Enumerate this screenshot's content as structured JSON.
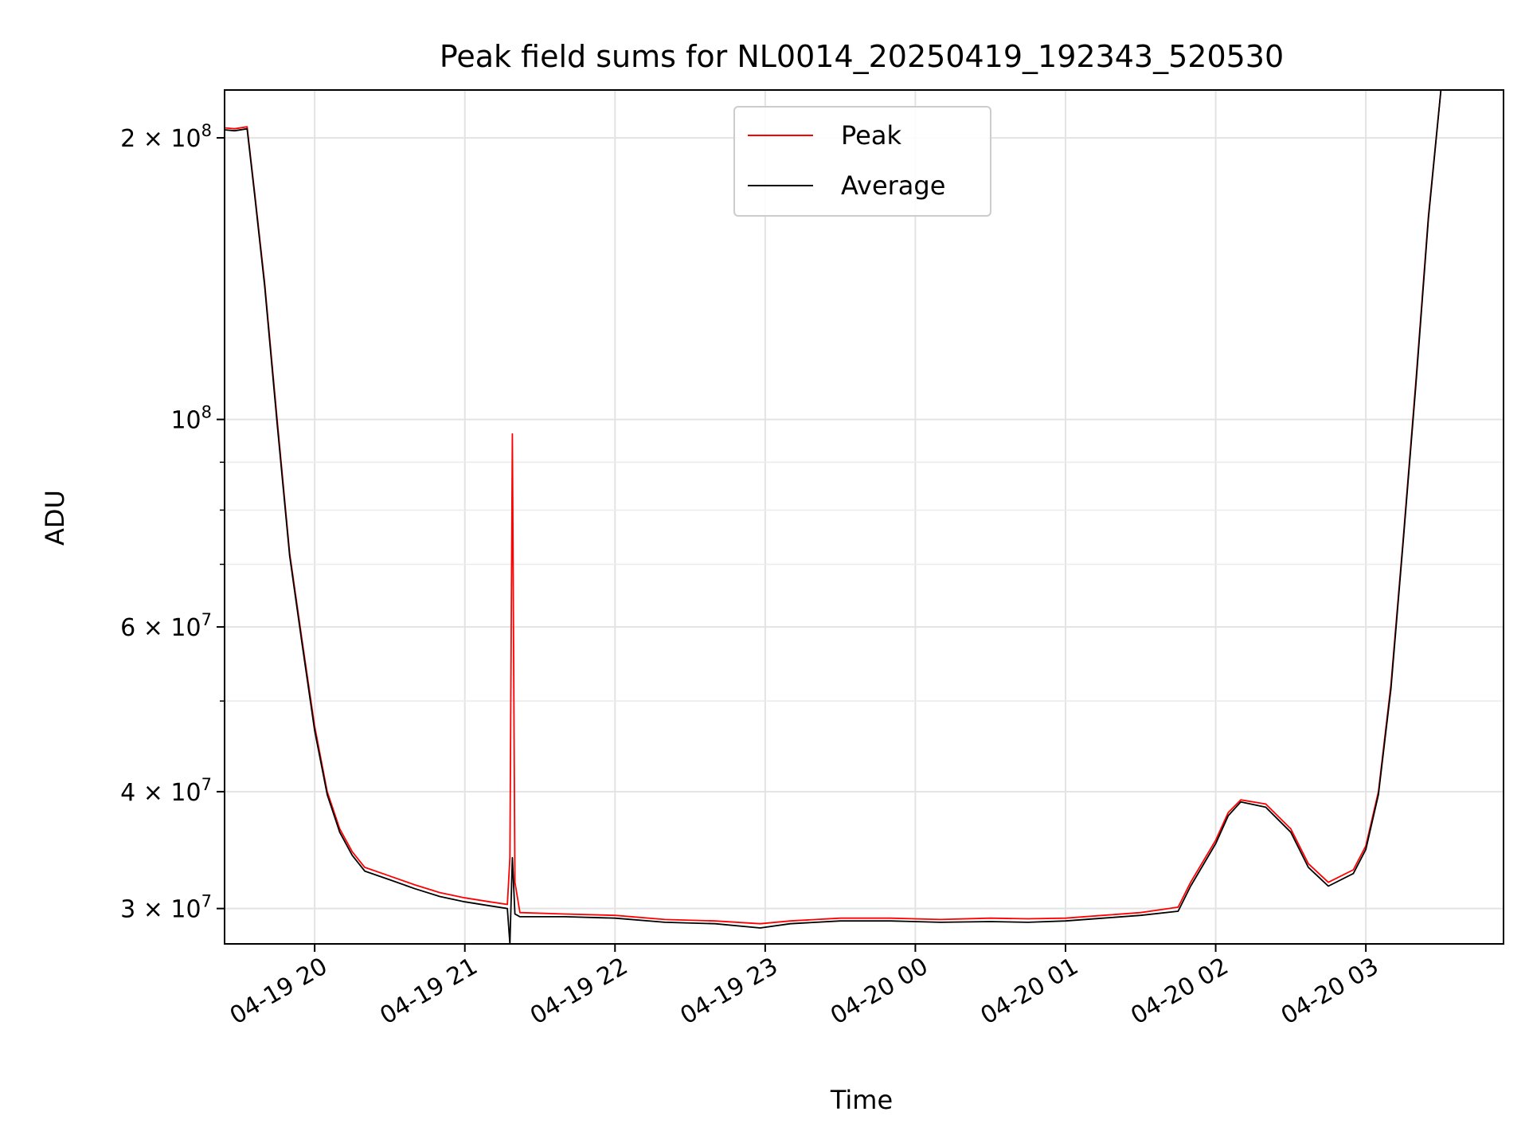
{
  "chart_data": {
    "type": "line",
    "title": "Peak field sums for NL0014_20250419_192343_520530",
    "xlabel": "Time",
    "ylabel": "ADU",
    "yscale": "log",
    "ylim": [
      27500000,
      225000000
    ],
    "xlim": [
      "2025-04-19T19:24",
      "2025-04-20T03:55"
    ],
    "grid": true,
    "legend_position": "top-center",
    "x_ticks": [
      {
        "value": "2025-04-19T20:00",
        "label": "04-19 20"
      },
      {
        "value": "2025-04-19T21:00",
        "label": "04-19 21"
      },
      {
        "value": "2025-04-19T22:00",
        "label": "04-19 22"
      },
      {
        "value": "2025-04-19T23:00",
        "label": "04-19 23"
      },
      {
        "value": "2025-04-20T00:00",
        "label": "04-20 00"
      },
      {
        "value": "2025-04-20T01:00",
        "label": "04-20 01"
      },
      {
        "value": "2025-04-20T02:00",
        "label": "04-20 02"
      },
      {
        "value": "2025-04-20T03:00",
        "label": "04-20 03"
      }
    ],
    "y_ticks": [
      {
        "value": 30000000,
        "label": "3 × 10",
        "exp": "7"
      },
      {
        "value": 40000000,
        "label": "4 × 10",
        "exp": "7"
      },
      {
        "value": 60000000,
        "label": "6 × 10",
        "exp": "7"
      },
      {
        "value": 100000000,
        "label": "10",
        "exp": "8"
      },
      {
        "value": 200000000,
        "label": "2 × 10",
        "exp": "8"
      }
    ],
    "y_minor_gridlines": [
      50000000,
      70000000,
      80000000,
      90000000
    ],
    "series": [
      {
        "name": "Peak",
        "color": "#ff0000",
        "points": [
          [
            "2025-04-19T19:24",
            205000000
          ],
          [
            "2025-04-19T19:28",
            204500000
          ],
          [
            "2025-04-19T19:33",
            205500000
          ],
          [
            "2025-04-19T19:36",
            175000000
          ],
          [
            "2025-04-19T19:40",
            140000000
          ],
          [
            "2025-04-19T19:45",
            100000000
          ],
          [
            "2025-04-19T19:50",
            72000000
          ],
          [
            "2025-04-19T19:55",
            58000000
          ],
          [
            "2025-04-19T20:00",
            47000000
          ],
          [
            "2025-04-19T20:05",
            40000000
          ],
          [
            "2025-04-19T20:10",
            36500000
          ],
          [
            "2025-04-19T20:15",
            34500000
          ],
          [
            "2025-04-19T20:20",
            33200000
          ],
          [
            "2025-04-19T20:30",
            32500000
          ],
          [
            "2025-04-19T20:40",
            31800000
          ],
          [
            "2025-04-19T20:50",
            31200000
          ],
          [
            "2025-04-19T21:00",
            30800000
          ],
          [
            "2025-04-19T21:10",
            30500000
          ],
          [
            "2025-04-19T21:17",
            30300000
          ],
          [
            "2025-04-19T21:18",
            34000000
          ],
          [
            "2025-04-19T21:19",
            96500000
          ],
          [
            "2025-04-19T21:20",
            32000000
          ],
          [
            "2025-04-19T21:22",
            29700000
          ],
          [
            "2025-04-19T21:40",
            29600000
          ],
          [
            "2025-04-19T22:00",
            29500000
          ],
          [
            "2025-04-19T22:20",
            29200000
          ],
          [
            "2025-04-19T22:40",
            29100000
          ],
          [
            "2025-04-19T22:58",
            28900000
          ],
          [
            "2025-04-19T23:10",
            29100000
          ],
          [
            "2025-04-19T23:30",
            29300000
          ],
          [
            "2025-04-19T23:50",
            29300000
          ],
          [
            "2025-04-20T00:10",
            29200000
          ],
          [
            "2025-04-20T00:30",
            29300000
          ],
          [
            "2025-04-20T00:45",
            29250000
          ],
          [
            "2025-04-20T01:00",
            29300000
          ],
          [
            "2025-04-20T01:15",
            29500000
          ],
          [
            "2025-04-20T01:30",
            29700000
          ],
          [
            "2025-04-20T01:45",
            30100000
          ],
          [
            "2025-04-20T01:50",
            32000000
          ],
          [
            "2025-04-20T02:00",
            35500000
          ],
          [
            "2025-04-20T02:05",
            38000000
          ],
          [
            "2025-04-20T02:10",
            39200000
          ],
          [
            "2025-04-20T02:20",
            38800000
          ],
          [
            "2025-04-20T02:30",
            36500000
          ],
          [
            "2025-04-20T02:37",
            33500000
          ],
          [
            "2025-04-20T02:45",
            32000000
          ],
          [
            "2025-04-20T02:55",
            33000000
          ],
          [
            "2025-04-20T03:00",
            35000000
          ],
          [
            "2025-04-20T03:05",
            40000000
          ],
          [
            "2025-04-20T03:10",
            52000000
          ],
          [
            "2025-04-20T03:15",
            75000000
          ],
          [
            "2025-04-20T03:20",
            110000000
          ],
          [
            "2025-04-20T03:25",
            165000000
          ],
          [
            "2025-04-20T03:30",
            225000000
          ]
        ]
      },
      {
        "name": "Average",
        "color": "#000000",
        "points": [
          [
            "2025-04-19T19:24",
            204000000
          ],
          [
            "2025-04-19T19:28",
            203500000
          ],
          [
            "2025-04-19T19:33",
            204500000
          ],
          [
            "2025-04-19T19:36",
            174000000
          ],
          [
            "2025-04-19T19:40",
            139000000
          ],
          [
            "2025-04-19T19:45",
            99000000
          ],
          [
            "2025-04-19T19:50",
            71500000
          ],
          [
            "2025-04-19T19:55",
            57500000
          ],
          [
            "2025-04-19T20:00",
            46500000
          ],
          [
            "2025-04-19T20:05",
            39700000
          ],
          [
            "2025-04-19T20:10",
            36200000
          ],
          [
            "2025-04-19T20:15",
            34200000
          ],
          [
            "2025-04-19T20:20",
            32900000
          ],
          [
            "2025-04-19T20:30",
            32200000
          ],
          [
            "2025-04-19T20:40",
            31500000
          ],
          [
            "2025-04-19T20:50",
            30900000
          ],
          [
            "2025-04-19T21:00",
            30500000
          ],
          [
            "2025-04-19T21:10",
            30200000
          ],
          [
            "2025-04-19T21:17",
            30000000
          ],
          [
            "2025-04-19T21:18",
            27500000
          ],
          [
            "2025-04-19T21:19",
            34000000
          ],
          [
            "2025-04-19T21:20",
            29600000
          ],
          [
            "2025-04-19T21:22",
            29400000
          ],
          [
            "2025-04-19T21:40",
            29400000
          ],
          [
            "2025-04-19T22:00",
            29300000
          ],
          [
            "2025-04-19T22:20",
            29000000
          ],
          [
            "2025-04-19T22:40",
            28900000
          ],
          [
            "2025-04-19T22:58",
            28600000
          ],
          [
            "2025-04-19T23:10",
            28900000
          ],
          [
            "2025-04-19T23:30",
            29100000
          ],
          [
            "2025-04-19T23:50",
            29100000
          ],
          [
            "2025-04-20T00:10",
            29000000
          ],
          [
            "2025-04-20T00:30",
            29050000
          ],
          [
            "2025-04-20T00:45",
            29000000
          ],
          [
            "2025-04-20T01:00",
            29100000
          ],
          [
            "2025-04-20T01:15",
            29300000
          ],
          [
            "2025-04-20T01:30",
            29500000
          ],
          [
            "2025-04-20T01:45",
            29800000
          ],
          [
            "2025-04-20T01:50",
            31700000
          ],
          [
            "2025-04-20T02:00",
            35200000
          ],
          [
            "2025-04-20T02:05",
            37700000
          ],
          [
            "2025-04-20T02:10",
            39000000
          ],
          [
            "2025-04-20T02:20",
            38500000
          ],
          [
            "2025-04-20T02:30",
            36200000
          ],
          [
            "2025-04-20T02:37",
            33200000
          ],
          [
            "2025-04-20T02:45",
            31700000
          ],
          [
            "2025-04-20T02:55",
            32700000
          ],
          [
            "2025-04-20T03:00",
            34700000
          ],
          [
            "2025-04-20T03:05",
            39700000
          ],
          [
            "2025-04-20T03:10",
            51500000
          ],
          [
            "2025-04-20T03:15",
            74500000
          ],
          [
            "2025-04-20T03:20",
            109000000
          ],
          [
            "2025-04-20T03:25",
            164000000
          ],
          [
            "2025-04-20T03:30",
            225000000
          ]
        ]
      }
    ]
  }
}
